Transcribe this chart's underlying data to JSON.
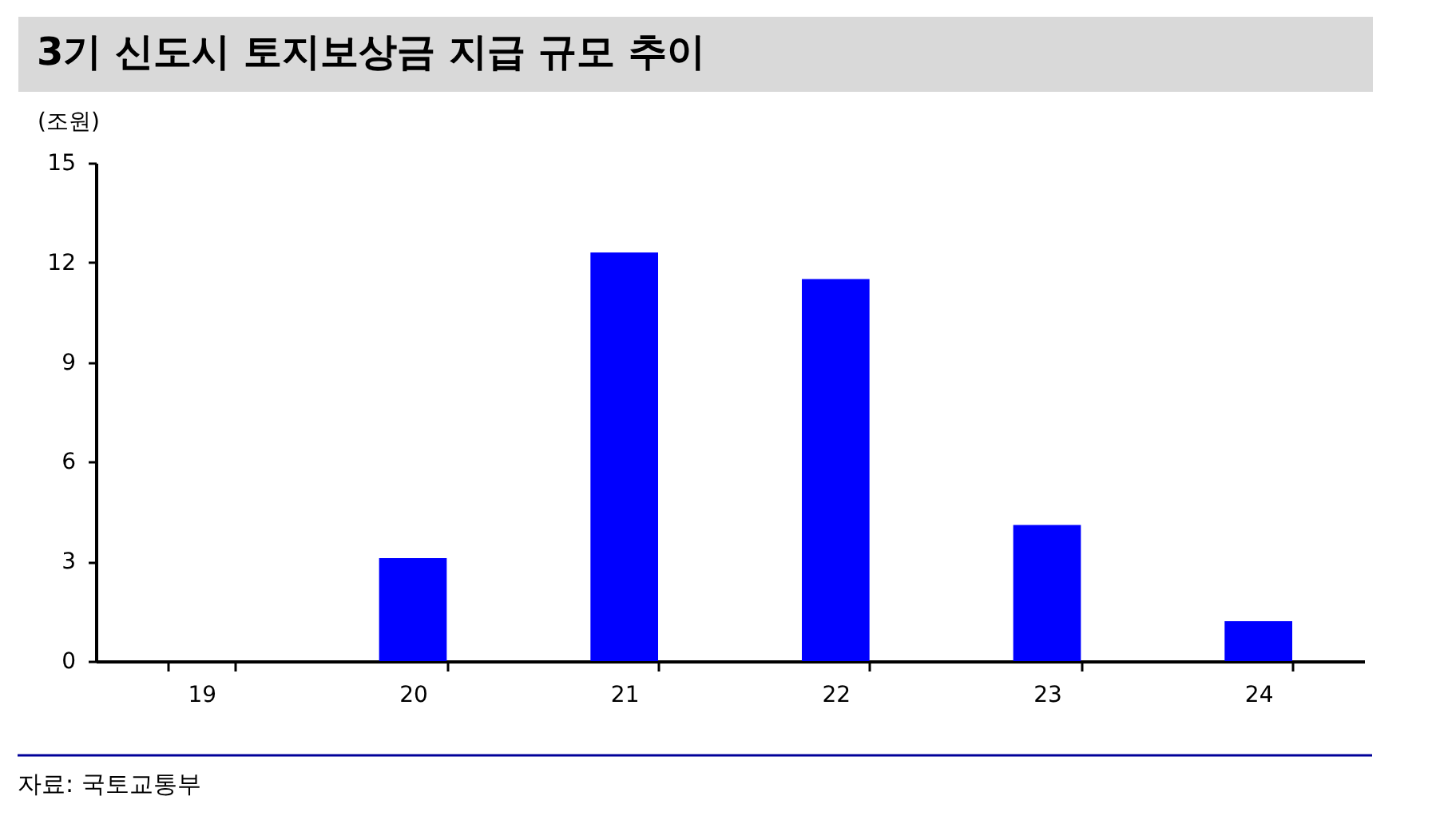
{
  "chart_data": {
    "type": "bar",
    "title": "3기 신도시 토지보상금 지급 규모 추이",
    "ylabel": "(조원)",
    "categories": [
      "19",
      "20",
      "21",
      "22",
      "23",
      "24"
    ],
    "values": [
      0,
      3.1,
      12.3,
      11.5,
      4.1,
      1.2
    ],
    "color": "#0000ff",
    "ylim": [
      0,
      15
    ],
    "yticks": [
      0,
      3,
      6,
      9,
      12,
      15
    ],
    "annotations": [
      "자료: 국토교통부"
    ]
  }
}
